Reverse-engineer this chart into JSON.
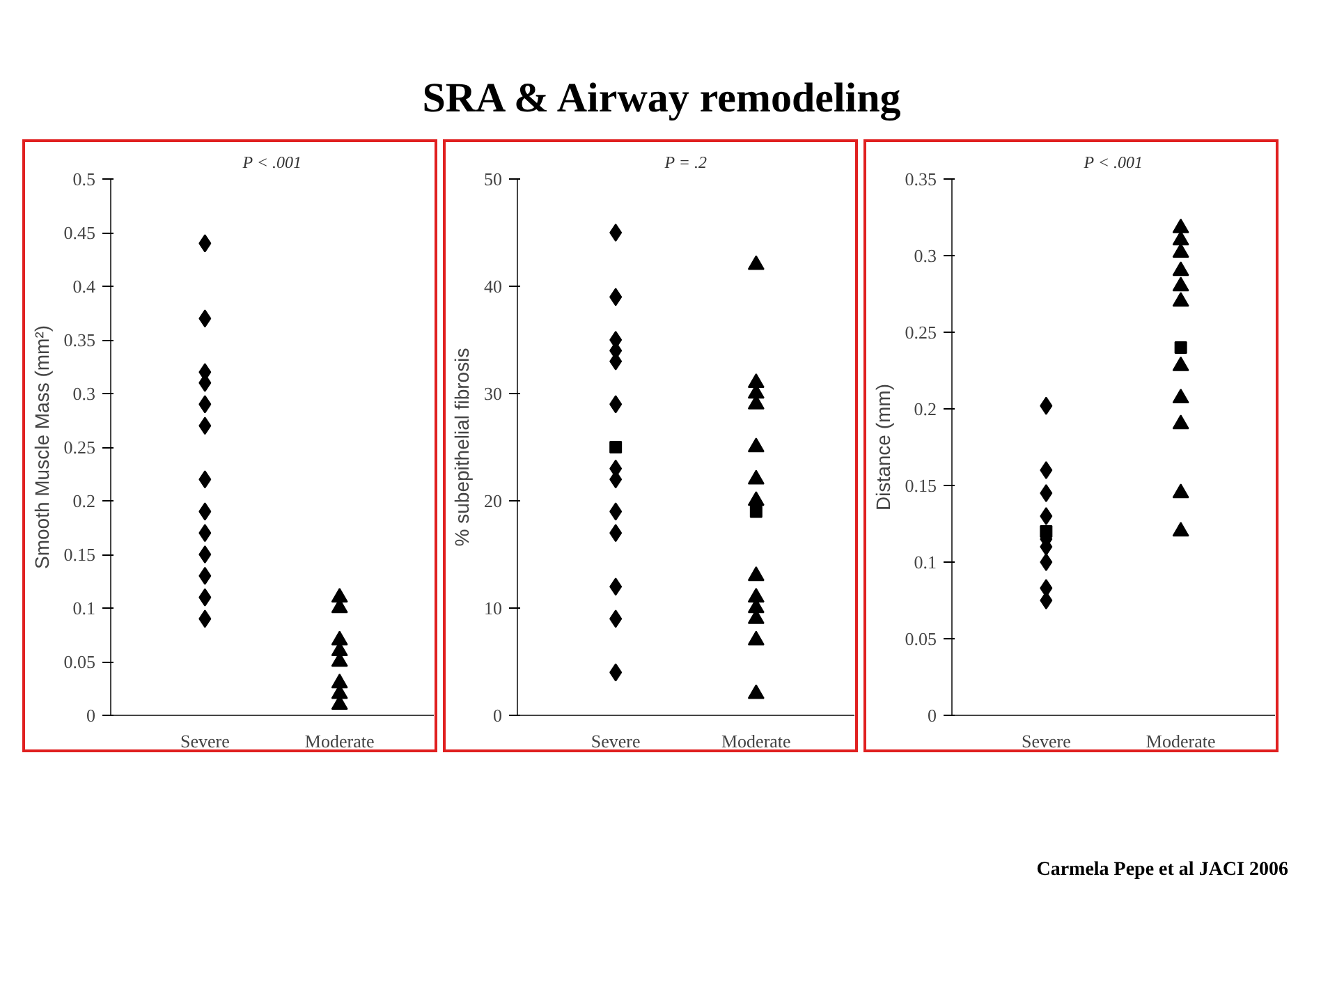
{
  "chart_data": [
    {
      "type": "other",
      "title": "SRA & Airway remodeling"
    },
    {
      "type": "scatter",
      "ylabel": "Smooth Muscle Mass (mm²)",
      "categories": [
        "Severe",
        "Moderate"
      ],
      "ylim": [
        0,
        0.5
      ],
      "yticks": [
        0,
        0.05,
        0.1,
        0.15,
        0.2,
        0.25,
        0.3,
        0.35,
        0.4,
        0.45,
        0.5
      ],
      "annotations": [
        "P < .001"
      ],
      "series": [
        {
          "color": "#000000",
          "marker": "diamond",
          "x": [
            "Severe",
            "Severe",
            "Severe",
            "Severe",
            "Severe",
            "Severe",
            "Severe",
            "Severe",
            "Severe",
            "Severe",
            "Severe",
            "Severe",
            "Severe"
          ],
          "values": [
            0.44,
            0.37,
            0.32,
            0.31,
            0.29,
            0.27,
            0.22,
            0.19,
            0.17,
            0.15,
            0.13,
            0.11,
            0.09
          ]
        },
        {
          "color": "#000000",
          "marker": "triangle",
          "x": [
            "Moderate",
            "Moderate",
            "Moderate",
            "Moderate",
            "Moderate",
            "Moderate",
            "Moderate",
            "Moderate"
          ],
          "values": [
            0.11,
            0.1,
            0.07,
            0.06,
            0.05,
            0.03,
            0.02,
            0.01
          ]
        }
      ]
    },
    {
      "type": "scatter",
      "ylabel": "% subepithelial fibrosis",
      "categories": [
        "Severe",
        "Moderate"
      ],
      "ylim": [
        0,
        50
      ],
      "yticks": [
        0,
        10,
        20,
        30,
        40,
        50
      ],
      "annotations": [
        "P = .2"
      ],
      "series": [
        {
          "color": "#000000",
          "marker": "diamond",
          "x": [
            "Severe",
            "Severe",
            "Severe",
            "Severe",
            "Severe",
            "Severe",
            "Severe",
            "Severe",
            "Severe",
            "Severe",
            "Severe",
            "Severe",
            "Severe"
          ],
          "values": [
            45,
            39,
            35,
            34,
            33,
            29,
            23,
            22,
            19,
            17,
            12,
            9,
            4
          ]
        },
        {
          "color": "#000000",
          "marker": "triangle",
          "x": [
            "Moderate",
            "Moderate",
            "Moderate",
            "Moderate",
            "Moderate",
            "Moderate",
            "Moderate",
            "Moderate",
            "Moderate",
            "Moderate",
            "Moderate",
            "Moderate",
            "Moderate"
          ],
          "values": [
            42,
            31,
            30,
            29,
            25,
            22,
            20,
            13,
            11,
            10,
            9,
            7,
            2
          ]
        },
        {
          "color": "#000000",
          "marker": "square",
          "x": [
            "Severe",
            "Moderate"
          ],
          "values": [
            25,
            19
          ]
        }
      ]
    },
    {
      "type": "scatter",
      "ylabel": "Distance (mm)",
      "categories": [
        "Severe",
        "Moderate"
      ],
      "ylim": [
        0,
        0.35
      ],
      "yticks": [
        0,
        0.05,
        0.1,
        0.15,
        0.2,
        0.25,
        0.3,
        0.35
      ],
      "annotations": [
        "P < .001",
        "Carmela Pepe  et al  JACI 2006"
      ],
      "series": [
        {
          "color": "#000000",
          "marker": "diamond",
          "x": [
            "Severe",
            "Severe",
            "Severe",
            "Severe",
            "Severe",
            "Severe",
            "Severe",
            "Severe",
            "Severe"
          ],
          "values": [
            0.202,
            0.16,
            0.145,
            0.13,
            0.115,
            0.11,
            0.1,
            0.083,
            0.075
          ]
        },
        {
          "color": "#000000",
          "marker": "triangle",
          "x": [
            "Moderate",
            "Moderate",
            "Moderate",
            "Moderate",
            "Moderate",
            "Moderate",
            "Moderate",
            "Moderate",
            "Moderate",
            "Moderate",
            "Moderate"
          ],
          "values": [
            0.318,
            0.31,
            0.302,
            0.29,
            0.28,
            0.27,
            0.228,
            0.207,
            0.19,
            0.145,
            0.12
          ]
        },
        {
          "color": "#000000",
          "marker": "square",
          "x": [
            "Severe",
            "Moderate"
          ],
          "values": [
            0.12,
            0.24
          ]
        }
      ]
    }
  ]
}
